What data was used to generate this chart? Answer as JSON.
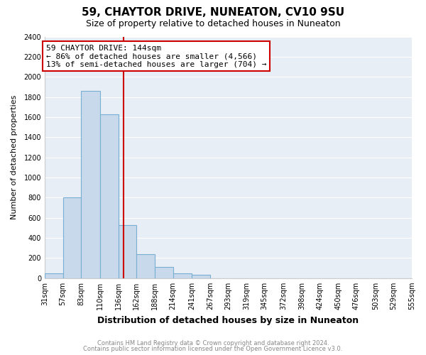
{
  "title": "59, CHAYTOR DRIVE, NUNEATON, CV10 9SU",
  "subtitle": "Size of property relative to detached houses in Nuneaton",
  "xlabel": "Distribution of detached houses by size in Nuneaton",
  "ylabel": "Number of detached properties",
  "footer_line1": "Contains HM Land Registry data © Crown copyright and database right 2024.",
  "footer_line2": "Contains public sector information licensed under the Open Government Licence v3.0.",
  "bin_edges": [
    31,
    57,
    83,
    110,
    136,
    162,
    188,
    214,
    241,
    267,
    293,
    319,
    345,
    372,
    398,
    424,
    450,
    476,
    503,
    529,
    555
  ],
  "bar_heights": [
    50,
    800,
    1860,
    1630,
    530,
    235,
    110,
    50,
    35,
    0,
    0,
    0,
    0,
    0,
    0,
    0,
    0,
    0,
    0,
    0
  ],
  "bar_color": "#c8d9eb",
  "bar_edgecolor": "#7aafd4",
  "ylim": [
    0,
    2400
  ],
  "yticks": [
    0,
    200,
    400,
    600,
    800,
    1000,
    1200,
    1400,
    1600,
    1800,
    2000,
    2200,
    2400
  ],
  "vline_x": 144,
  "vline_color": "#cc0000",
  "annotation_title": "59 CHAYTOR DRIVE: 144sqm",
  "annotation_line1": "← 86% of detached houses are smaller (4,566)",
  "annotation_line2": "13% of semi-detached houses are larger (704) →",
  "annotation_box_facecolor": "#ffffff",
  "annotation_box_edgecolor": "#cc0000",
  "background_color": "#ffffff",
  "plot_bg_color": "#e8eef5",
  "grid_color": "#ffffff",
  "title_fontsize": 11,
  "subtitle_fontsize": 9,
  "xlabel_fontsize": 9,
  "ylabel_fontsize": 8,
  "tick_fontsize": 7,
  "ann_fontsize": 8,
  "footer_fontsize": 6,
  "footer_color": "#888888"
}
